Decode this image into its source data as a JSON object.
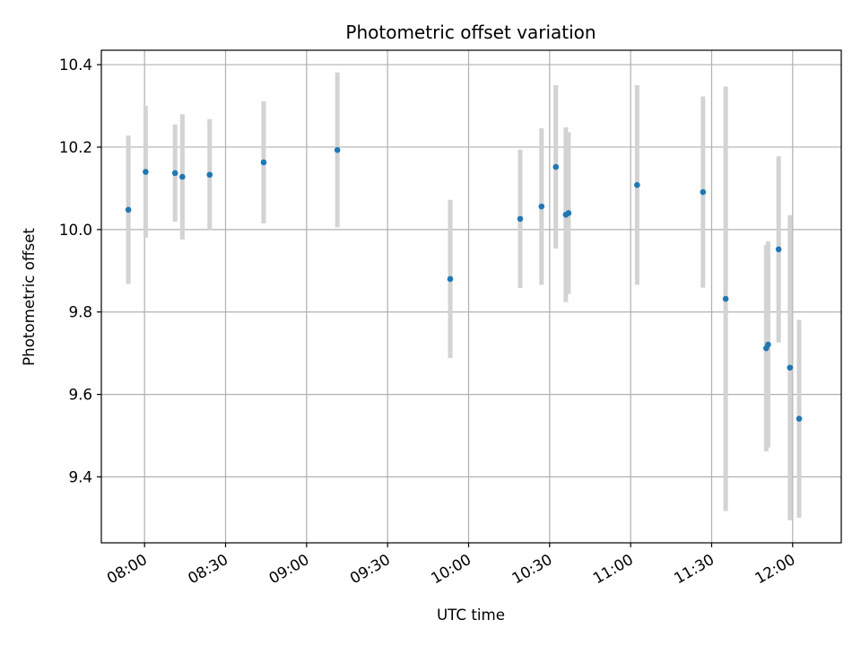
{
  "chart_data": {
    "type": "scatter",
    "title": "Photometric offset variation",
    "xlabel": "UTC time",
    "ylabel": "Photometric offset",
    "xlim_minutes": [
      464,
      738
    ],
    "ylim": [
      9.24,
      10.435
    ],
    "grid": true,
    "x_ticks": [
      {
        "minute": 480,
        "label": "08:00"
      },
      {
        "minute": 510,
        "label": "08:30"
      },
      {
        "minute": 540,
        "label": "09:00"
      },
      {
        "minute": 570,
        "label": "09:30"
      },
      {
        "minute": 600,
        "label": "10:00"
      },
      {
        "minute": 630,
        "label": "10:30"
      },
      {
        "minute": 660,
        "label": "11:00"
      },
      {
        "minute": 690,
        "label": "11:30"
      },
      {
        "minute": 720,
        "label": "12:00"
      }
    ],
    "y_ticks": [
      {
        "value": 9.4,
        "label": "9.4"
      },
      {
        "value": 9.6,
        "label": "9.6"
      },
      {
        "value": 9.8,
        "label": "9.8"
      },
      {
        "value": 10.0,
        "label": "10.0"
      },
      {
        "value": 10.2,
        "label": "10.2"
      },
      {
        "value": 10.4,
        "label": "10.4"
      }
    ],
    "marker_color": "#1f77b4",
    "errorbar_color": "#d3d3d3",
    "points": [
      {
        "time": "07:54",
        "minute": 474.0,
        "y": 10.048,
        "err": 0.18
      },
      {
        "time": "08:00",
        "minute": 480.4,
        "y": 10.14,
        "err": 0.16
      },
      {
        "time": "08:11",
        "minute": 491.3,
        "y": 10.137,
        "err": 0.118
      },
      {
        "time": "08:14",
        "minute": 494.0,
        "y": 10.128,
        "err": 0.152
      },
      {
        "time": "08:24",
        "minute": 504.1,
        "y": 10.133,
        "err": 0.135
      },
      {
        "time": "08:44",
        "minute": 524.1,
        "y": 10.163,
        "err": 0.148
      },
      {
        "time": "09:11",
        "minute": 551.4,
        "y": 10.193,
        "err": 0.188
      },
      {
        "time": "09:53",
        "minute": 593.2,
        "y": 9.88,
        "err": 0.192
      },
      {
        "time": "10:19",
        "minute": 619.1,
        "y": 10.026,
        "err": 0.168
      },
      {
        "time": "10:27",
        "minute": 627.0,
        "y": 10.056,
        "err": 0.19
      },
      {
        "time": "10:32",
        "minute": 632.3,
        "y": 10.152,
        "err": 0.198
      },
      {
        "time": "10:36",
        "minute": 636.0,
        "y": 10.036,
        "err": 0.212
      },
      {
        "time": "10:36",
        "minute": 637.0,
        "y": 10.04,
        "err": 0.196
      },
      {
        "time": "11:02",
        "minute": 662.4,
        "y": 10.108,
        "err": 0.242
      },
      {
        "time": "11:27",
        "minute": 686.8,
        "y": 10.091,
        "err": 0.232
      },
      {
        "time": "11:35",
        "minute": 695.2,
        "y": 9.832,
        "err": 0.515
      },
      {
        "time": "11:50",
        "minute": 710.2,
        "y": 9.712,
        "err": 0.25
      },
      {
        "time": "11:50",
        "minute": 710.9,
        "y": 9.721,
        "err": 0.25
      },
      {
        "time": "11:54",
        "minute": 714.8,
        "y": 9.952,
        "err": 0.226
      },
      {
        "time": "11:59",
        "minute": 719.0,
        "y": 9.665,
        "err": 0.37
      },
      {
        "time": "12:02",
        "minute": 722.4,
        "y": 9.541,
        "err": 0.24
      }
    ]
  }
}
